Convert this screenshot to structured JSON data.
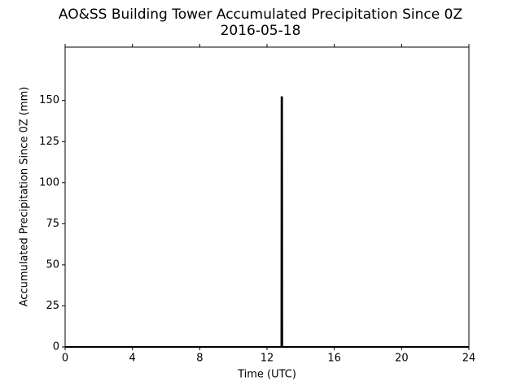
{
  "chart_data": {
    "type": "line",
    "title": "AO&SS Building Tower Accumulated Precipitation Since 0Z",
    "subtitle": "2016-05-18",
    "x_label": "Time (UTC)",
    "y_label": "Accumulated Precipitation Since 0Z (mm)",
    "x": [
      0,
      12.85,
      12.86,
      12.9,
      12.91,
      24
    ],
    "series": [
      {
        "name": "Accumulated precipitation",
        "color": "#000000",
        "values": [
          0,
          0,
          152,
          152,
          0,
          0
        ]
      }
    ],
    "xlim": [
      0,
      24
    ],
    "xticks": [
      0,
      4,
      8,
      12,
      16,
      20,
      24
    ],
    "ylim": [
      0,
      182.5
    ],
    "yticks": [
      0,
      25,
      50,
      75,
      100,
      125,
      150
    ],
    "grid": false
  }
}
